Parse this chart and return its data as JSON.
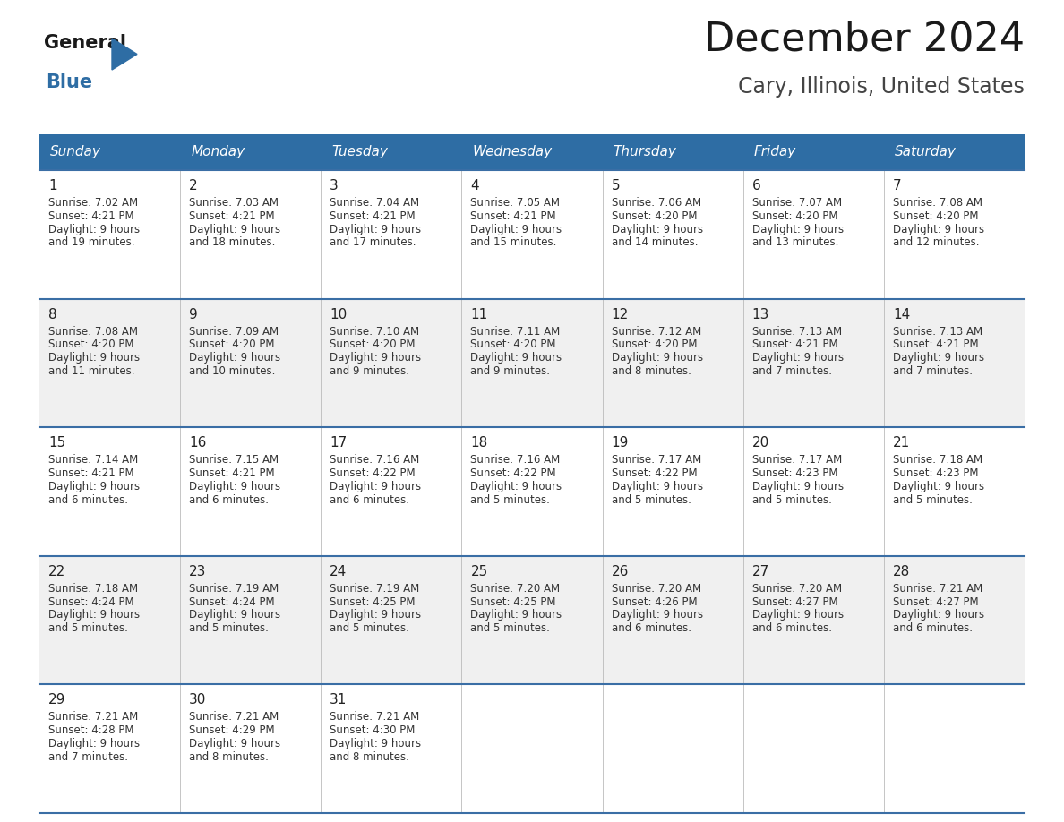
{
  "title": "December 2024",
  "subtitle": "Cary, Illinois, United States",
  "days_of_week": [
    "Sunday",
    "Monday",
    "Tuesday",
    "Wednesday",
    "Thursday",
    "Friday",
    "Saturday"
  ],
  "header_bg": "#2E6DA4",
  "header_text": "#FFFFFF",
  "cell_bg_light": "#F0F0F0",
  "cell_bg_white": "#FFFFFF",
  "cell_border_color": "#3A6EA5",
  "day_num_color": "#222222",
  "cell_text_color": "#333333",
  "title_color": "#1a1a1a",
  "subtitle_color": "#444444",
  "logo_general_color": "#1a1a1a",
  "logo_blue_color": "#2E6DA4",
  "weeks": [
    [
      {
        "day": 1,
        "sunrise": "7:02 AM",
        "sunset": "4:21 PM",
        "daylight": "9 hours and 19 minutes."
      },
      {
        "day": 2,
        "sunrise": "7:03 AM",
        "sunset": "4:21 PM",
        "daylight": "9 hours and 18 minutes."
      },
      {
        "day": 3,
        "sunrise": "7:04 AM",
        "sunset": "4:21 PM",
        "daylight": "9 hours and 17 minutes."
      },
      {
        "day": 4,
        "sunrise": "7:05 AM",
        "sunset": "4:21 PM",
        "daylight": "9 hours and 15 minutes."
      },
      {
        "day": 5,
        "sunrise": "7:06 AM",
        "sunset": "4:20 PM",
        "daylight": "9 hours and 14 minutes."
      },
      {
        "day": 6,
        "sunrise": "7:07 AM",
        "sunset": "4:20 PM",
        "daylight": "9 hours and 13 minutes."
      },
      {
        "day": 7,
        "sunrise": "7:08 AM",
        "sunset": "4:20 PM",
        "daylight": "9 hours and 12 minutes."
      }
    ],
    [
      {
        "day": 8,
        "sunrise": "7:08 AM",
        "sunset": "4:20 PM",
        "daylight": "9 hours and 11 minutes."
      },
      {
        "day": 9,
        "sunrise": "7:09 AM",
        "sunset": "4:20 PM",
        "daylight": "9 hours and 10 minutes."
      },
      {
        "day": 10,
        "sunrise": "7:10 AM",
        "sunset": "4:20 PM",
        "daylight": "9 hours and 9 minutes."
      },
      {
        "day": 11,
        "sunrise": "7:11 AM",
        "sunset": "4:20 PM",
        "daylight": "9 hours and 9 minutes."
      },
      {
        "day": 12,
        "sunrise": "7:12 AM",
        "sunset": "4:20 PM",
        "daylight": "9 hours and 8 minutes."
      },
      {
        "day": 13,
        "sunrise": "7:13 AM",
        "sunset": "4:21 PM",
        "daylight": "9 hours and 7 minutes."
      },
      {
        "day": 14,
        "sunrise": "7:13 AM",
        "sunset": "4:21 PM",
        "daylight": "9 hours and 7 minutes."
      }
    ],
    [
      {
        "day": 15,
        "sunrise": "7:14 AM",
        "sunset": "4:21 PM",
        "daylight": "9 hours and 6 minutes."
      },
      {
        "day": 16,
        "sunrise": "7:15 AM",
        "sunset": "4:21 PM",
        "daylight": "9 hours and 6 minutes."
      },
      {
        "day": 17,
        "sunrise": "7:16 AM",
        "sunset": "4:22 PM",
        "daylight": "9 hours and 6 minutes."
      },
      {
        "day": 18,
        "sunrise": "7:16 AM",
        "sunset": "4:22 PM",
        "daylight": "9 hours and 5 minutes."
      },
      {
        "day": 19,
        "sunrise": "7:17 AM",
        "sunset": "4:22 PM",
        "daylight": "9 hours and 5 minutes."
      },
      {
        "day": 20,
        "sunrise": "7:17 AM",
        "sunset": "4:23 PM",
        "daylight": "9 hours and 5 minutes."
      },
      {
        "day": 21,
        "sunrise": "7:18 AM",
        "sunset": "4:23 PM",
        "daylight": "9 hours and 5 minutes."
      }
    ],
    [
      {
        "day": 22,
        "sunrise": "7:18 AM",
        "sunset": "4:24 PM",
        "daylight": "9 hours and 5 minutes."
      },
      {
        "day": 23,
        "sunrise": "7:19 AM",
        "sunset": "4:24 PM",
        "daylight": "9 hours and 5 minutes."
      },
      {
        "day": 24,
        "sunrise": "7:19 AM",
        "sunset": "4:25 PM",
        "daylight": "9 hours and 5 minutes."
      },
      {
        "day": 25,
        "sunrise": "7:20 AM",
        "sunset": "4:25 PM",
        "daylight": "9 hours and 5 minutes."
      },
      {
        "day": 26,
        "sunrise": "7:20 AM",
        "sunset": "4:26 PM",
        "daylight": "9 hours and 6 minutes."
      },
      {
        "day": 27,
        "sunrise": "7:20 AM",
        "sunset": "4:27 PM",
        "daylight": "9 hours and 6 minutes."
      },
      {
        "day": 28,
        "sunrise": "7:21 AM",
        "sunset": "4:27 PM",
        "daylight": "9 hours and 6 minutes."
      }
    ],
    [
      {
        "day": 29,
        "sunrise": "7:21 AM",
        "sunset": "4:28 PM",
        "daylight": "9 hours and 7 minutes."
      },
      {
        "day": 30,
        "sunrise": "7:21 AM",
        "sunset": "4:29 PM",
        "daylight": "9 hours and 8 minutes."
      },
      {
        "day": 31,
        "sunrise": "7:21 AM",
        "sunset": "4:30 PM",
        "daylight": "9 hours and 8 minutes."
      },
      null,
      null,
      null,
      null
    ]
  ]
}
